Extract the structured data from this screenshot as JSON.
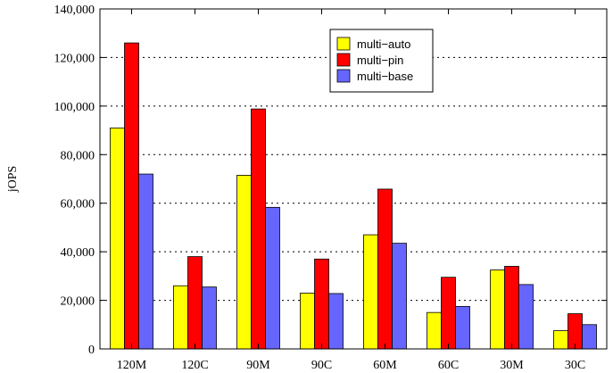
{
  "chart_data": {
    "type": "bar",
    "title": "",
    "xlabel": "",
    "ylabel": "jOPS",
    "ylim": [
      0,
      140000
    ],
    "yticks": [
      0,
      20000,
      40000,
      60000,
      80000,
      100000,
      120000,
      140000
    ],
    "ytick_labels": [
      "0",
      "20,000",
      "40,000",
      "60,000",
      "80,000",
      "100,000",
      "120,000",
      "140,000"
    ],
    "grid": "horizontal-dotted",
    "legend_position": "top-right",
    "categories": [
      "120M",
      "120C",
      "90M",
      "90C",
      "60M",
      "60C",
      "30M",
      "30C"
    ],
    "series": [
      {
        "name": "multi−auto",
        "color": "#ffff00",
        "values": [
          91000,
          26000,
          71500,
          23000,
          47000,
          15000,
          32500,
          7500
        ]
      },
      {
        "name": "multi−pin",
        "color": "#ff0000",
        "values": [
          126000,
          38000,
          98800,
          37000,
          65800,
          29500,
          34000,
          14500
        ]
      },
      {
        "name": "multi−base",
        "color": "#6666ff",
        "values": [
          72000,
          25500,
          58300,
          22800,
          43500,
          17500,
          26500,
          10000
        ]
      }
    ]
  }
}
